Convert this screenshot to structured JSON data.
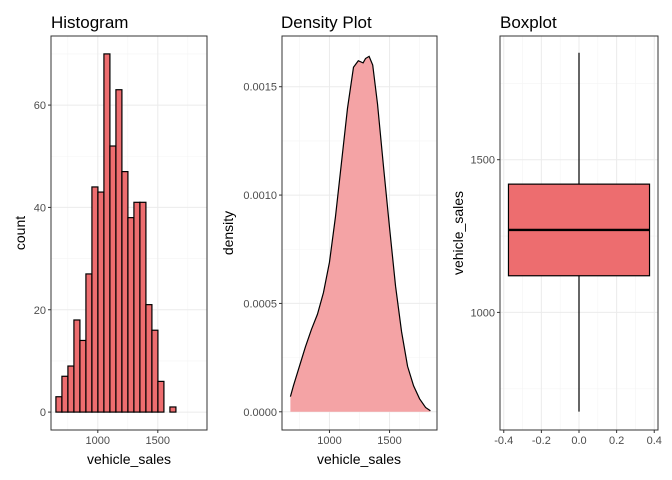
{
  "chart_data": [
    {
      "type": "bar",
      "title": "Histogram",
      "xlabel": "vehicle_sales",
      "ylabel": "count",
      "xlim": [
        610,
        1910
      ],
      "ylim": [
        -3.5,
        73.5
      ],
      "xticks": [
        1000,
        1500
      ],
      "yticks": [
        0,
        20,
        40,
        60
      ],
      "xminor": [
        750,
        1250,
        1750
      ],
      "yminor": [
        10,
        30,
        50,
        70
      ],
      "bin_start": 651,
      "bin_width": 50,
      "values": [
        3,
        7,
        9,
        18,
        14,
        27,
        44,
        43,
        70,
        52,
        63,
        47,
        38,
        41,
        41,
        21,
        16,
        6,
        0,
        1
      ],
      "fill": "#ED6D6F",
      "grid": true
    },
    {
      "type": "area",
      "title": "Density Plot",
      "xlabel": "vehicle_sales",
      "ylabel": "density",
      "xlim": [
        605,
        1895
      ],
      "ylim": [
        -8.4e-05,
        0.001734
      ],
      "xticks": [
        1000,
        1500
      ],
      "yticks": [
        0,
        0.0005,
        0.001,
        0.0015
      ],
      "ytick_labels": [
        "0.0000",
        "0.0005",
        "0.0010",
        "0.0015"
      ],
      "xminor": [
        750,
        1250,
        1750
      ],
      "yminor": [
        0.00025,
        0.00075,
        0.00125
      ],
      "x": [
        675,
        700,
        750,
        800,
        850,
        900,
        950,
        1000,
        1050,
        1100,
        1150,
        1200,
        1240,
        1280,
        1300,
        1330,
        1360,
        1400,
        1450,
        1500,
        1550,
        1600,
        1650,
        1700,
        1750,
        1800,
        1840
      ],
      "y": [
        7e-05,
        0.00012,
        0.00021,
        0.0003,
        0.00038,
        0.00045,
        0.00055,
        0.00069,
        0.0009,
        0.00115,
        0.0014,
        0.00159,
        0.00162,
        0.00161,
        0.00163,
        0.00164,
        0.0016,
        0.00142,
        0.00113,
        0.00085,
        0.00058,
        0.00037,
        0.00021,
        0.00012,
        6e-05,
        2e-05,
        5e-06
      ],
      "fill": "#F4A3A5",
      "grid": true
    },
    {
      "type": "box",
      "title": "Boxplot",
      "xlabel": "",
      "ylabel": "vehicle_sales",
      "xlim": [
        -0.42,
        0.42
      ],
      "ylim": [
        615,
        1905
      ],
      "xticks": [
        -0.4,
        -0.2,
        0.0,
        0.2,
        0.4
      ],
      "xtick_labels": [
        "-0.4",
        "-0.2",
        "0.0",
        "0.2",
        "0.4"
      ],
      "yticks": [
        1000,
        1500
      ],
      "xminor": [
        -0.3,
        -0.1,
        0.1,
        0.3
      ],
      "yminor": [
        750,
        1250,
        1750
      ],
      "box": {
        "min": 675,
        "q1": 1120,
        "median": 1270,
        "q3": 1420,
        "max": 1850,
        "half_width": 0.375
      },
      "fill": "#ED6D6F",
      "grid": true
    }
  ]
}
